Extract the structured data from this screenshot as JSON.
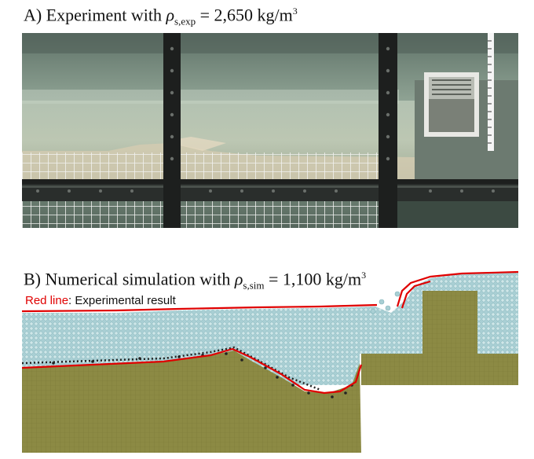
{
  "panel_a": {
    "label": "A) Experiment with ",
    "rho": "ρ",
    "subscript": "s,exp",
    "value": " = 2,650 kg/m",
    "exponent": "3"
  },
  "panel_b": {
    "label": "B) Numerical simulation with ",
    "rho": "ρ",
    "subscript": "s,sim",
    "value": " = 1,100 kg/m",
    "exponent": "3"
  },
  "legend": {
    "line_name": "Red line",
    "description": ": Experimental result"
  },
  "colors": {
    "experimental_line": "#e00000",
    "sediment": "#8c8a44",
    "water_particles": "#a9cfd4",
    "glass_frame": "#1d1f1e",
    "grid_mesh": "#f2f2f0"
  }
}
